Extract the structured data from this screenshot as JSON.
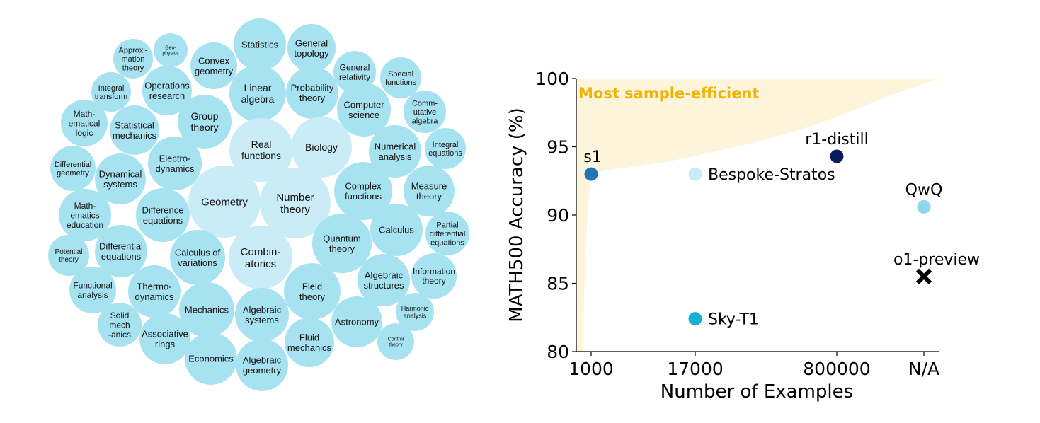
{
  "colors": {
    "bubble_light": "#c9ecf6",
    "bubble": "#a7e2f1",
    "frontier_fill": "#fdf4dc",
    "frontier_label": "#f0b400",
    "s1": "#1f77b4",
    "bespoke": "#c9ecf6",
    "r1": "#0a1a5c",
    "qwq": "#8fd6ee",
    "sky": "#17b0d8",
    "o1": "#000000"
  },
  "topics": [
    {
      "label": "Statistics",
      "fontsize": 13,
      "light": false
    },
    {
      "label": "General\ntopology",
      "fontsize": 13,
      "light": false
    },
    {
      "label": "Approxi-\nmation\ntheory",
      "fontsize": 11,
      "light": false
    },
    {
      "label": "Geo-\nphysics",
      "fontsize": 7,
      "light": false
    },
    {
      "label": "Convex\ngeometry",
      "fontsize": 13,
      "light": false
    },
    {
      "label": "General\nrelativity",
      "fontsize": 12,
      "light": false
    },
    {
      "label": "Special\nfunctions",
      "fontsize": 11,
      "light": false
    },
    {
      "label": "Integral\ntransform",
      "fontsize": 11,
      "light": false
    },
    {
      "label": "Operations\nresearch",
      "fontsize": 13,
      "light": false
    },
    {
      "label": "Linear\nalgebra",
      "fontsize": 14,
      "light": false
    },
    {
      "label": "Probability\ntheory",
      "fontsize": 13,
      "light": false
    },
    {
      "label": "Computer\nscience",
      "fontsize": 13,
      "light": false
    },
    {
      "label": "Comm-\nutative\nalgebra",
      "fontsize": 11,
      "light": false
    },
    {
      "label": "Math-\nematical\nlogic",
      "fontsize": 12,
      "light": false
    },
    {
      "label": "Statistical\nmechanics",
      "fontsize": 13,
      "light": false
    },
    {
      "label": "Group\ntheory",
      "fontsize": 14,
      "light": false
    },
    {
      "label": "Real\nfunctions",
      "fontsize": 14,
      "light": true
    },
    {
      "label": "Biology",
      "fontsize": 14,
      "light": true
    },
    {
      "label": "Numerical\nanalysis",
      "fontsize": 13,
      "light": false
    },
    {
      "label": "Integral\nequations",
      "fontsize": 11,
      "light": false
    },
    {
      "label": "Differential\ngeometry",
      "fontsize": 11,
      "light": false
    },
    {
      "label": "Dynamical\nsystems",
      "fontsize": 13,
      "light": false
    },
    {
      "label": "Electro-\ndynamics",
      "fontsize": 13,
      "light": false
    },
    {
      "label": "Complex\nfunctions",
      "fontsize": 13,
      "light": false
    },
    {
      "label": "Measure\ntheory",
      "fontsize": 13,
      "light": false
    },
    {
      "label": "Math-\nematics\neducation",
      "fontsize": 12,
      "light": false
    },
    {
      "label": "Difference\nequations",
      "fontsize": 13,
      "light": false
    },
    {
      "label": "Geometry",
      "fontsize": 15,
      "light": true
    },
    {
      "label": "Number\ntheory",
      "fontsize": 15,
      "light": true
    },
    {
      "label": "Partial\ndifferential\nequations",
      "fontsize": 11,
      "light": false
    },
    {
      "label": "Calculus",
      "fontsize": 13,
      "light": false
    },
    {
      "label": "Quantum\ntheory",
      "fontsize": 13,
      "light": false
    },
    {
      "label": "Potential\ntheory",
      "fontsize": 10,
      "light": false
    },
    {
      "label": "Differential\nequations",
      "fontsize": 13,
      "light": false
    },
    {
      "label": "Calculus of\nvariations",
      "fontsize": 13,
      "light": false
    },
    {
      "label": "Combin-\natorics",
      "fontsize": 15,
      "light": true
    },
    {
      "label": "Algebraic\nstructures",
      "fontsize": 13,
      "light": false
    },
    {
      "label": "Information\ntheory",
      "fontsize": 12,
      "light": false
    },
    {
      "label": "Functional\nanalysis",
      "fontsize": 12,
      "light": false
    },
    {
      "label": "Thermo-\ndynamics",
      "fontsize": 13,
      "light": false
    },
    {
      "label": "Field\ntheory",
      "fontsize": 13,
      "light": false
    },
    {
      "label": "Mechanics",
      "fontsize": 13,
      "light": false
    },
    {
      "label": "Algebraic\nsystems",
      "fontsize": 13,
      "light": false
    },
    {
      "label": "Harmonic\nanalysis",
      "fontsize": 9,
      "light": false
    },
    {
      "label": "Solid\nmech\n-anics",
      "fontsize": 12,
      "light": false
    },
    {
      "label": "Associative\nrings",
      "fontsize": 13,
      "light": false
    },
    {
      "label": "Astronomy",
      "fontsize": 13,
      "light": false
    },
    {
      "label": "Control\ntheory",
      "fontsize": 7,
      "light": false
    },
    {
      "label": "Economics",
      "fontsize": 13,
      "light": false
    },
    {
      "label": "Algebraic\ngeometry",
      "fontsize": 13,
      "light": false
    },
    {
      "label": "Fluid\nmechanics",
      "fontsize": 13,
      "light": false
    }
  ],
  "chart_data": {
    "type": "scatter",
    "title": "",
    "xlabel": "Number of Examples",
    "ylabel": "MATH500 Accuracy (%)",
    "x_categories": [
      "1000",
      "17000",
      "800000",
      "N/A"
    ],
    "ylim": [
      80,
      100
    ],
    "yticks": [
      "80",
      "85",
      "90",
      "95",
      "100"
    ],
    "grid": false,
    "annotation": "Most sample-efficient",
    "points": [
      {
        "name": "s1",
        "x": "1000",
        "y": 93.0,
        "marker": "circle",
        "color": "#1f77b4",
        "label_pos": "above"
      },
      {
        "name": "Bespoke-Stratos",
        "x": "17000",
        "y": 93.0,
        "marker": "circle",
        "color": "#c9ecf6",
        "label_pos": "right"
      },
      {
        "name": "r1-distill",
        "x": "800000",
        "y": 94.3,
        "marker": "circle",
        "color": "#0a1a5c",
        "label_pos": "above"
      },
      {
        "name": "QwQ",
        "x": "N/A",
        "y": 90.6,
        "marker": "circle",
        "color": "#8fd6ee",
        "label_pos": "above"
      },
      {
        "name": "o1-preview",
        "x": "N/A",
        "y": 85.5,
        "marker": "x",
        "color": "#000000",
        "label_pos": "above"
      },
      {
        "name": "Sky-T1",
        "x": "17000",
        "y": 82.4,
        "marker": "circle",
        "color": "#17b0d8",
        "label_pos": "right"
      }
    ]
  }
}
